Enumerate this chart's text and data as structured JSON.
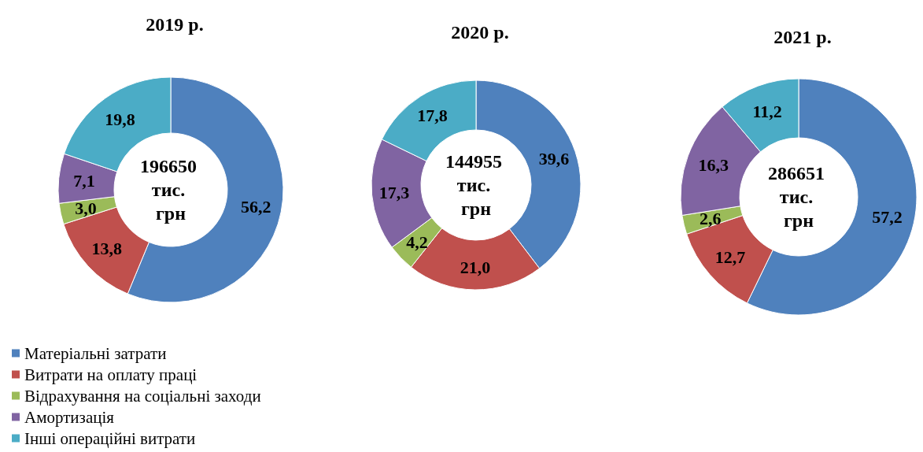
{
  "chart_data": [
    {
      "type": "donut",
      "title": "2019 р.",
      "categories": [
        "Матеріальні затрати",
        "Витрати на оплату праці",
        "Відрахування на соціальні заходи",
        "Амортизація",
        "Інші операційні витрати"
      ],
      "values": [
        56.2,
        13.8,
        3.0,
        7.1,
        19.8
      ],
      "value_labels": [
        "56,2",
        "13,8",
        "3,0",
        "7,1",
        "19,8"
      ],
      "colors": [
        "#4f81bd",
        "#c0504d",
        "#9bbb59",
        "#8064a2",
        "#4bacc6"
      ],
      "annotations": [
        "196650 тис. грн"
      ],
      "legend": "bottom left"
    },
    {
      "type": "donut",
      "title": "2020 р.",
      "categories": [
        null,
        null,
        null,
        null,
        null
      ],
      "values": [
        39.6,
        21.0,
        4.2,
        17.3,
        17.8
      ],
      "value_labels": [
        "39,6",
        "21,0",
        "4,2",
        "17,3",
        "17,8"
      ],
      "colors": [
        "#4f81bd",
        "#c0504d",
        "#9bbb59",
        "#8064a2",
        "#4bacc6"
      ],
      "annotations": [
        "144955 тис. грн"
      ]
    },
    {
      "type": "donut",
      "title": "2021 р.",
      "categories": [
        null,
        null,
        null,
        null,
        null
      ],
      "values": [
        57.2,
        12.7,
        2.6,
        16.3,
        11.2
      ],
      "value_labels": [
        "57,2",
        "12,7",
        "2,6",
        "16,3",
        "11,2"
      ],
      "colors": [
        "#4f81bd",
        "#c0504d",
        "#9bbb59",
        "#8064a2",
        "#4bacc6"
      ],
      "annotations": [
        "286651 тис. грн"
      ]
    }
  ]
}
